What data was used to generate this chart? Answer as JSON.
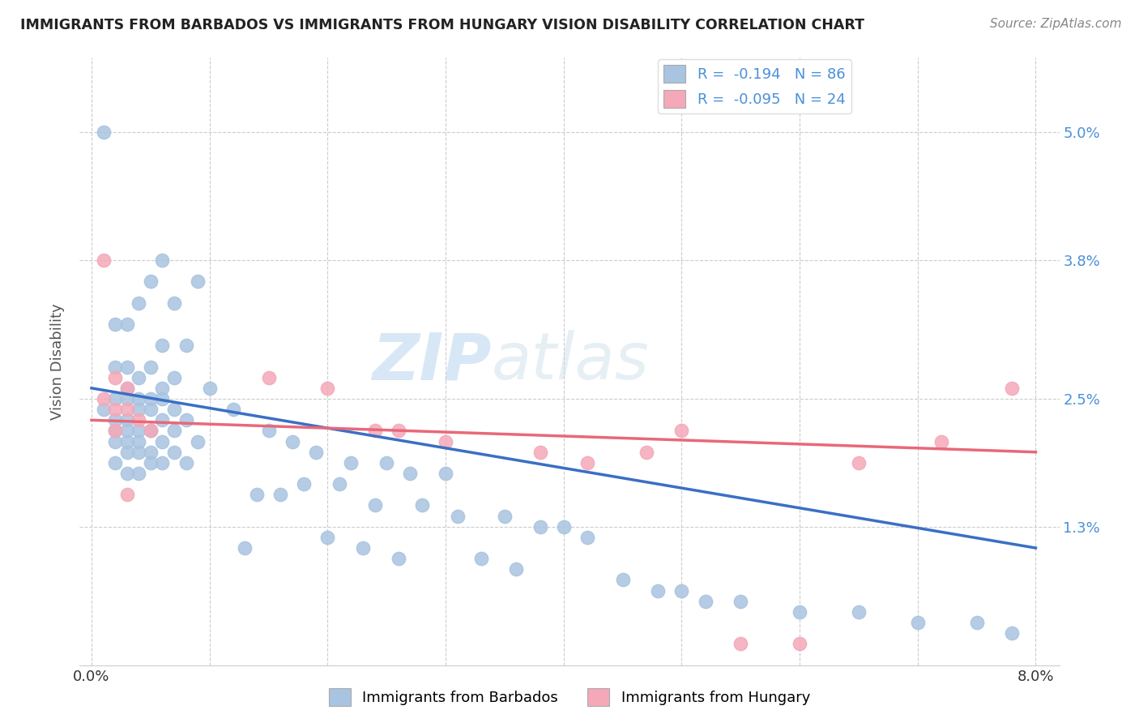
{
  "title": "IMMIGRANTS FROM BARBADOS VS IMMIGRANTS FROM HUNGARY VISION DISABILITY CORRELATION CHART",
  "source": "Source: ZipAtlas.com",
  "ylabel": "Vision Disability",
  "ytick_labels": [
    "5.0%",
    "3.8%",
    "2.5%",
    "1.3%"
  ],
  "ytick_values": [
    0.05,
    0.038,
    0.025,
    0.013
  ],
  "xtick_values": [
    0.0,
    0.01,
    0.02,
    0.03,
    0.04,
    0.05,
    0.06,
    0.07,
    0.08
  ],
  "xlim": [
    -0.001,
    0.082
  ],
  "ylim": [
    0.0,
    0.057
  ],
  "r_barbados": -0.194,
  "n_barbados": 86,
  "r_hungary": -0.095,
  "n_hungary": 24,
  "color_barbados": "#a8c4e0",
  "color_hungary": "#f4a8b8",
  "line_color_barbados": "#3a6fc4",
  "line_color_hungary": "#e8687a",
  "line_b_x0": 0.0,
  "line_b_y0": 0.026,
  "line_b_x1": 0.08,
  "line_b_y1": 0.011,
  "line_h_x0": 0.0,
  "line_h_y0": 0.023,
  "line_h_x1": 0.08,
  "line_h_y1": 0.02,
  "barbados_x": [
    0.001,
    0.006,
    0.005,
    0.009,
    0.007,
    0.004,
    0.003,
    0.002,
    0.008,
    0.006,
    0.003,
    0.005,
    0.002,
    0.004,
    0.007,
    0.003,
    0.006,
    0.004,
    0.002,
    0.005,
    0.003,
    0.006,
    0.001,
    0.004,
    0.007,
    0.005,
    0.003,
    0.008,
    0.002,
    0.006,
    0.004,
    0.007,
    0.003,
    0.005,
    0.002,
    0.009,
    0.004,
    0.006,
    0.003,
    0.002,
    0.005,
    0.007,
    0.004,
    0.003,
    0.006,
    0.008,
    0.002,
    0.005,
    0.004,
    0.003,
    0.01,
    0.012,
    0.015,
    0.017,
    0.019,
    0.022,
    0.025,
    0.027,
    0.03,
    0.018,
    0.021,
    0.014,
    0.016,
    0.024,
    0.028,
    0.031,
    0.035,
    0.038,
    0.04,
    0.042,
    0.02,
    0.013,
    0.023,
    0.026,
    0.033,
    0.036,
    0.045,
    0.05,
    0.055,
    0.06,
    0.065,
    0.07,
    0.075,
    0.078,
    0.048,
    0.052
  ],
  "barbados_y": [
    0.05,
    0.038,
    0.036,
    0.036,
    0.034,
    0.034,
    0.032,
    0.032,
    0.03,
    0.03,
    0.028,
    0.028,
    0.028,
    0.027,
    0.027,
    0.026,
    0.026,
    0.025,
    0.025,
    0.025,
    0.025,
    0.025,
    0.024,
    0.024,
    0.024,
    0.024,
    0.023,
    0.023,
    0.023,
    0.023,
    0.022,
    0.022,
    0.022,
    0.022,
    0.022,
    0.021,
    0.021,
    0.021,
    0.021,
    0.021,
    0.02,
    0.02,
    0.02,
    0.02,
    0.019,
    0.019,
    0.019,
    0.019,
    0.018,
    0.018,
    0.026,
    0.024,
    0.022,
    0.021,
    0.02,
    0.019,
    0.019,
    0.018,
    0.018,
    0.017,
    0.017,
    0.016,
    0.016,
    0.015,
    0.015,
    0.014,
    0.014,
    0.013,
    0.013,
    0.012,
    0.012,
    0.011,
    0.011,
    0.01,
    0.01,
    0.009,
    0.008,
    0.007,
    0.006,
    0.005,
    0.005,
    0.004,
    0.004,
    0.003,
    0.007,
    0.006
  ],
  "hungary_x": [
    0.001,
    0.002,
    0.003,
    0.001,
    0.002,
    0.003,
    0.004,
    0.005,
    0.002,
    0.003,
    0.015,
    0.02,
    0.024,
    0.026,
    0.03,
    0.038,
    0.042,
    0.047,
    0.05,
    0.055,
    0.06,
    0.065,
    0.072,
    0.078
  ],
  "hungary_y": [
    0.038,
    0.027,
    0.026,
    0.025,
    0.024,
    0.024,
    0.023,
    0.022,
    0.022,
    0.016,
    0.027,
    0.026,
    0.022,
    0.022,
    0.021,
    0.02,
    0.019,
    0.02,
    0.022,
    0.002,
    0.002,
    0.019,
    0.021,
    0.026
  ]
}
